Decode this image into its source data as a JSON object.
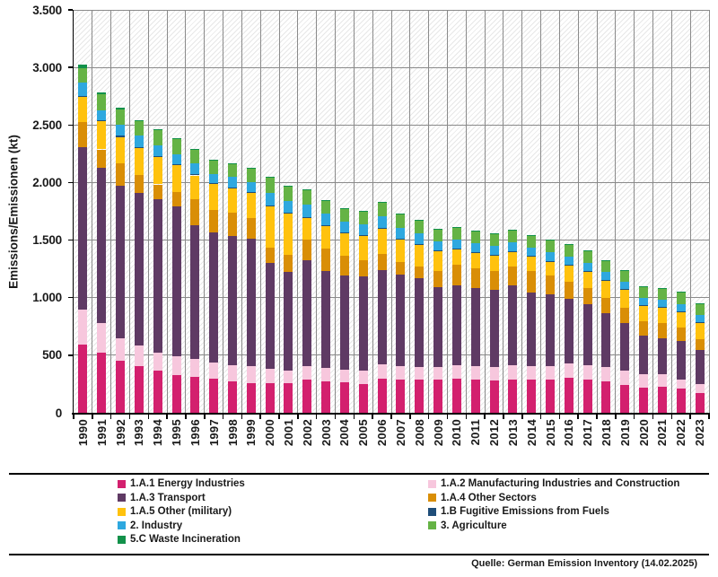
{
  "y_axis": {
    "label": "Emissions/Emissionen (kt)",
    "ticks": [
      {
        "value": 3500,
        "label": "3.500"
      },
      {
        "value": 3000,
        "label": "3.000"
      },
      {
        "value": 2500,
        "label": "2.500"
      },
      {
        "value": 2000,
        "label": "2.000"
      },
      {
        "value": 1500,
        "label": "1.500"
      },
      {
        "value": 1000,
        "label": "1.000"
      },
      {
        "value": 500,
        "label": "500"
      },
      {
        "value": 0,
        "label": "0"
      }
    ]
  },
  "source": "Quelle: German Emission Inventory (14.02.2025)",
  "legend": {
    "columns": [
      [
        "1.A.1 Energy Industries",
        "1.A.3 Transport",
        "1.A.5 Other (military)",
        "2. Industry",
        "5.C Waste Incineration"
      ],
      [
        "1.A.2 Manufacturing Industries and Construction",
        "1.A.4 Other Sectors",
        "1.B Fugitive Emissions from Fuels",
        "3. Agriculture"
      ]
    ]
  },
  "chart_data": {
    "type": "bar",
    "stacked": true,
    "title": "",
    "xlabel": "",
    "ylabel": "Emissions/Emissionen (kt)",
    "ylim": [
      0,
      3500
    ],
    "ytick_step": 500,
    "grid": true,
    "legend_position": "bottom",
    "categories": [
      "1990",
      "1991",
      "1992",
      "1993",
      "1994",
      "1995",
      "1996",
      "1997",
      "1998",
      "1999",
      "2000",
      "2001",
      "2002",
      "2003",
      "2004",
      "2005",
      "2006",
      "2007",
      "2008",
      "2009",
      "2010",
      "2011",
      "2012",
      "2013",
      "2014",
      "2015",
      "2016",
      "2017",
      "2018",
      "2019",
      "2020",
      "2021",
      "2022",
      "2023"
    ],
    "series": [
      {
        "name": "1.A.1 Energy Industries",
        "color": "#D3206E",
        "values": [
          590,
          520,
          455,
          408,
          364,
          325,
          312,
          299,
          273,
          260,
          255,
          260,
          286,
          273,
          265,
          252,
          300,
          292,
          286,
          286,
          299,
          291,
          281,
          291,
          286,
          286,
          305,
          291,
          273,
          239,
          221,
          226,
          213,
          174
        ]
      },
      {
        "name": "1.A.2 Manufacturing Industries and Construction",
        "color": "#F7C7DD",
        "values": [
          310,
          260,
          195,
          177,
          156,
          164,
          156,
          135,
          143,
          143,
          130,
          104,
          117,
          117,
          112,
          112,
          122,
          117,
          109,
          109,
          117,
          112,
          114,
          120,
          117,
          117,
          122,
          125,
          122,
          125,
          117,
          112,
          78,
          73
        ]
      },
      {
        "name": "1.A.3 Transport",
        "color": "#5F3A64",
        "values": [
          1410,
          1352,
          1326,
          1326,
          1334,
          1305,
          1165,
          1131,
          1118,
          1113,
          915,
          858,
          923,
          845,
          819,
          819,
          814,
          793,
          775,
          697,
          689,
          684,
          676,
          694,
          638,
          624,
          564,
          528,
          468,
          416,
          333,
          312,
          333,
          299
        ]
      },
      {
        "name": "1.A.4 Other Sectors",
        "color": "#D98E06",
        "values": [
          215,
          156,
          195,
          156,
          130,
          122,
          221,
          200,
          208,
          174,
          137,
          148,
          182,
          195,
          169,
          143,
          143,
          104,
          104,
          143,
          182,
          166,
          164,
          164,
          187,
          164,
          151,
          143,
          138,
          135,
          122,
          130,
          117,
          96
        ]
      },
      {
        "name": "1.A.5 Other (military)",
        "color": "#FFC20E",
        "values": [
          220,
          247,
          226,
          234,
          239,
          234,
          208,
          221,
          208,
          221,
          357,
          359,
          182,
          195,
          195,
          208,
          221,
          195,
          182,
          169,
          130,
          138,
          130,
          127,
          125,
          122,
          138,
          140,
          148,
          151,
          138,
          135,
          135,
          138
        ]
      },
      {
        "name": "1.B Fugitive Emissions from Fuels",
        "color": "#1F4E79",
        "values": [
          8,
          8,
          8,
          8,
          8,
          8,
          8,
          8,
          8,
          8,
          8,
          8,
          8,
          8,
          8,
          8,
          8,
          8,
          8,
          8,
          8,
          8,
          8,
          8,
          8,
          8,
          8,
          8,
          8,
          8,
          8,
          8,
          8,
          8
        ]
      },
      {
        "name": "2. Industry",
        "color": "#2EA8DF",
        "values": [
          117,
          83,
          99,
          96,
          91,
          86,
          96,
          83,
          91,
          83,
          109,
          104,
          109,
          96,
          91,
          96,
          96,
          96,
          96,
          75,
          78,
          75,
          75,
          78,
          75,
          78,
          70,
          70,
          70,
          65,
          62,
          60,
          60,
          65
        ]
      },
      {
        "name": "3. Agriculture",
        "color": "#65B345",
        "values": [
          120,
          140,
          133,
          128,
          130,
          130,
          119,
          115,
          112,
          120,
          130,
          127,
          127,
          114,
          114,
          109,
          117,
          117,
          109,
          104,
          106,
          104,
          104,
          101,
          104,
          101,
          101,
          99,
          96,
          96,
          96,
          96,
          101,
          93
        ]
      },
      {
        "name": "5.C Waste Incineration",
        "color": "#12914A",
        "values": [
          36,
          20,
          15,
          10,
          10,
          10,
          10,
          10,
          10,
          10,
          8,
          8,
          8,
          8,
          8,
          8,
          8,
          8,
          8,
          8,
          6,
          6,
          6,
          6,
          6,
          6,
          6,
          6,
          5,
          5,
          5,
          5,
          5,
          5
        ]
      }
    ]
  }
}
